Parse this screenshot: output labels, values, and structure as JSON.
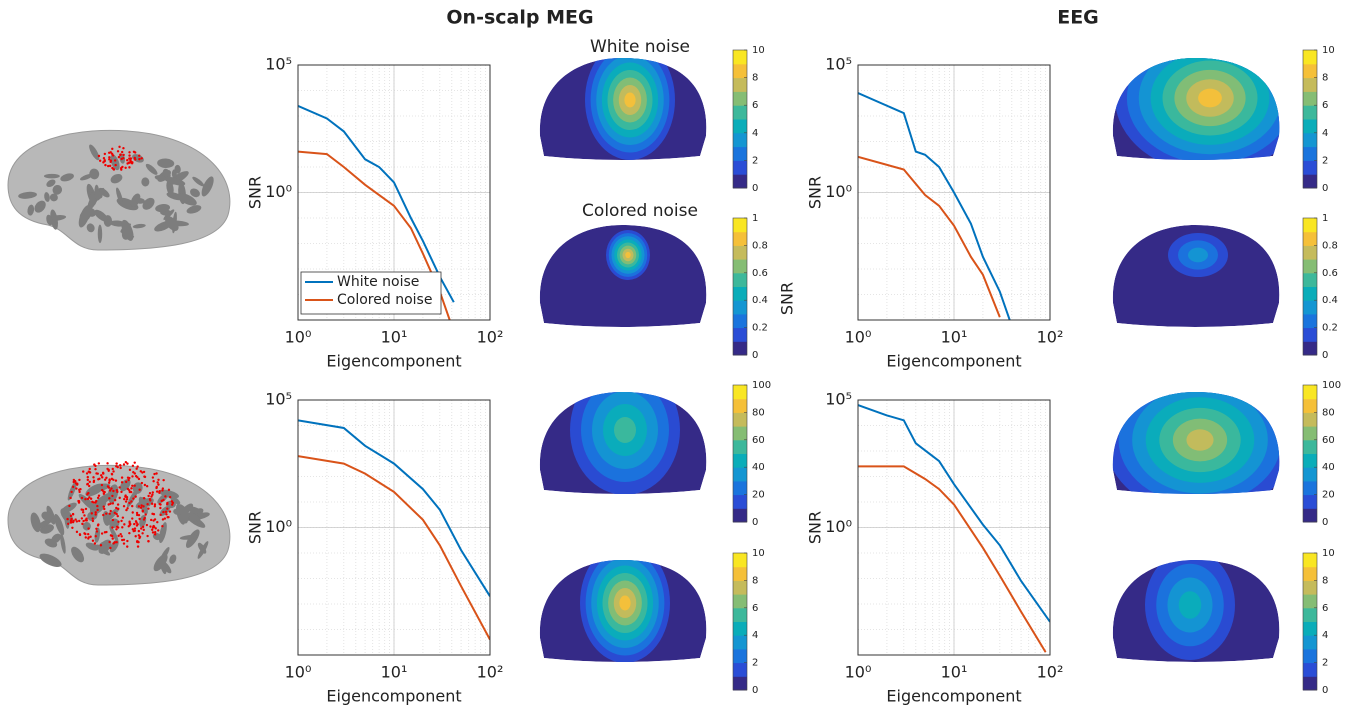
{
  "figure": {
    "column_titles": [
      "On-scalp MEG",
      "EEG"
    ],
    "topomap_titles": [
      "White noise",
      "Colored noise"
    ]
  },
  "chart_data": [
    {
      "type": "line",
      "xlabel": "Eigencomponent",
      "ylabel": "SNR",
      "xscale": "log",
      "yscale": "log",
      "xlim": [
        1,
        100
      ],
      "ylim": [
        1e-05,
        100000
      ],
      "xticks": [
        {
          "value": 1,
          "label": "10⁰"
        },
        {
          "value": 10,
          "label": "10¹"
        },
        {
          "value": 100,
          "label": "10²"
        }
      ],
      "yticks": [
        {
          "value": 1,
          "label": "10⁰"
        },
        {
          "value": 100000,
          "label": "10⁵"
        }
      ],
      "grid": true,
      "minor_grid": true,
      "legend": "lower left",
      "series": [
        {
          "name": "White noise",
          "color": "#0072bd",
          "x": [
            1,
            2,
            3,
            5,
            7,
            10,
            15,
            20,
            30,
            42
          ],
          "values": [
            2500,
            800,
            250,
            20,
            10,
            2.5,
            0.1,
            0.0126,
            0.0005,
            5e-05
          ]
        },
        {
          "name": "Colored noise",
          "color": "#d95319",
          "x": [
            1,
            2,
            3,
            5,
            10,
            15,
            20,
            30,
            38
          ],
          "values": [
            40,
            32,
            10,
            2,
            0.3,
            0.04,
            0.004,
            0.00013,
            1e-05
          ]
        }
      ]
    },
    {
      "type": "line",
      "xlabel": "Eigencomponent",
      "ylabel": "SNR",
      "xscale": "log",
      "yscale": "log",
      "xlim": [
        1,
        100
      ],
      "ylim": [
        1e-05,
        100000
      ],
      "xticks": [
        {
          "value": 1,
          "label": "10⁰"
        },
        {
          "value": 10,
          "label": "10¹"
        },
        {
          "value": 100,
          "label": "10²"
        }
      ],
      "yticks": [
        {
          "value": 1,
          "label": "10⁰"
        },
        {
          "value": 100000,
          "label": "10⁵"
        }
      ],
      "grid": true,
      "minor_grid": true,
      "series": [
        {
          "color": "#0072bd",
          "x": [
            1,
            3,
            4,
            5,
            7,
            10,
            15,
            20,
            30,
            38
          ],
          "values": [
            8000,
            1300,
            40,
            30,
            10,
            1,
            0.06,
            0.003,
            0.00013,
            1e-05
          ]
        },
        {
          "color": "#d95319",
          "x": [
            1,
            3,
            5,
            7,
            10,
            15,
            20,
            30
          ],
          "values": [
            25,
            8,
            0.8,
            0.3,
            0.05,
            0.003,
            0.0006,
            1.3e-05
          ]
        }
      ]
    },
    {
      "type": "line",
      "xlabel": "Eigencomponent",
      "ylabel": "SNR",
      "xscale": "log",
      "yscale": "log",
      "xlim": [
        1,
        100
      ],
      "ylim": [
        1e-05,
        100000
      ],
      "xticks": [
        {
          "value": 1,
          "label": "10⁰"
        },
        {
          "value": 10,
          "label": "10¹"
        },
        {
          "value": 100,
          "label": "10²"
        }
      ],
      "yticks": [
        {
          "value": 1,
          "label": "10⁰"
        },
        {
          "value": 100000,
          "label": "10⁵"
        }
      ],
      "grid": true,
      "minor_grid": true,
      "series": [
        {
          "color": "#0072bd",
          "x": [
            1,
            3,
            5,
            10,
            20,
            30,
            50,
            100
          ],
          "values": [
            16000,
            8000,
            1600,
            320,
            32,
            5,
            0.13,
            0.002
          ]
        },
        {
          "color": "#d95319",
          "x": [
            1,
            3,
            5,
            10,
            20,
            30,
            50,
            100
          ],
          "values": [
            630,
            320,
            130,
            25,
            2,
            0.2,
            0.005,
            4e-05
          ]
        }
      ]
    },
    {
      "type": "line",
      "xlabel": "Eigencomponent",
      "ylabel": "SNR",
      "xscale": "log",
      "yscale": "log",
      "xlim": [
        1,
        100
      ],
      "ylim": [
        1e-05,
        100000
      ],
      "xticks": [
        {
          "value": 1,
          "label": "10⁰"
        },
        {
          "value": 10,
          "label": "10¹"
        },
        {
          "value": 100,
          "label": "10²"
        }
      ],
      "yticks": [
        {
          "value": 1,
          "label": "10⁰"
        },
        {
          "value": 100000,
          "label": "10⁵"
        }
      ],
      "grid": true,
      "minor_grid": true,
      "series": [
        {
          "color": "#0072bd",
          "x": [
            1,
            2,
            3,
            4,
            7,
            10,
            20,
            30,
            50,
            100
          ],
          "values": [
            63000,
            25000,
            16000,
            2000,
            400,
            50,
            1.3,
            0.2,
            0.008,
            0.0002
          ]
        },
        {
          "color": "#d95319",
          "x": [
            1,
            3,
            5,
            7,
            10,
            20,
            30,
            50,
            90
          ],
          "values": [
            250,
            250,
            80,
            32,
            8,
            0.16,
            0.013,
            0.0005,
            1.3e-05
          ]
        }
      ]
    },
    {
      "type": "colorbar",
      "ylim": [
        0,
        10
      ],
      "yticks": [
        0,
        2,
        4,
        6,
        8,
        10
      ],
      "colors": [
        "#352a87",
        "#2a4dd6",
        "#1a74dd",
        "#1496d2",
        "#0aadb9",
        "#3db89b",
        "#85bd74",
        "#c5bb5b",
        "#f5c039",
        "#f9e623"
      ]
    },
    {
      "type": "colorbar",
      "ylim": [
        0,
        1
      ],
      "yticks": [
        0,
        0.2,
        0.4,
        0.6,
        0.8,
        1
      ],
      "label": "SNR",
      "colors": [
        "#352a87",
        "#2a4dd6",
        "#1a74dd",
        "#1496d2",
        "#0aadb9",
        "#3db89b",
        "#85bd74",
        "#c5bb5b",
        "#f5c039",
        "#f9e623"
      ]
    },
    {
      "type": "colorbar",
      "ylim": [
        0,
        100
      ],
      "yticks": [
        0,
        20,
        40,
        60,
        80,
        100
      ],
      "colors": [
        "#352a87",
        "#2a4dd6",
        "#1a74dd",
        "#1496d2",
        "#0aadb9",
        "#3db89b",
        "#85bd74",
        "#c5bb5b",
        "#f5c039",
        "#f9e623"
      ]
    },
    {
      "type": "colorbar",
      "ylim": [
        0,
        10
      ],
      "yticks": [
        0,
        2,
        4,
        6,
        8,
        10
      ],
      "colors": [
        "#352a87",
        "#2a4dd6",
        "#1a74dd",
        "#1496d2",
        "#0aadb9",
        "#3db89b",
        "#85bd74",
        "#c5bb5b",
        "#f5c039",
        "#f9e623"
      ]
    },
    {
      "type": "colorbar",
      "ylim": [
        0,
        10
      ],
      "yticks": [
        0,
        2,
        4,
        6,
        8,
        10
      ],
      "colors": [
        "#352a87",
        "#2a4dd6",
        "#1a74dd",
        "#1496d2",
        "#0aadb9",
        "#3db89b",
        "#85bd74",
        "#c5bb5b",
        "#f5c039",
        "#f9e623"
      ]
    },
    {
      "type": "colorbar",
      "ylim": [
        0,
        1
      ],
      "yticks": [
        0,
        0.2,
        0.4,
        0.6,
        0.8,
        1
      ],
      "colors": [
        "#352a87",
        "#2a4dd6",
        "#1a74dd",
        "#1496d2",
        "#0aadb9",
        "#3db89b",
        "#85bd74",
        "#c5bb5b",
        "#f5c039",
        "#f9e623"
      ]
    },
    {
      "type": "colorbar",
      "ylim": [
        0,
        100
      ],
      "yticks": [
        0,
        20,
        40,
        60,
        80,
        100
      ],
      "colors": [
        "#352a87",
        "#2a4dd6",
        "#1a74dd",
        "#1496d2",
        "#0aadb9",
        "#3db89b",
        "#85bd74",
        "#c5bb5b",
        "#f5c039",
        "#f9e623"
      ]
    },
    {
      "type": "colorbar",
      "ylim": [
        0,
        10
      ],
      "yticks": [
        0,
        2,
        4,
        6,
        8,
        10
      ],
      "colors": [
        "#352a87",
        "#2a4dd6",
        "#1a74dd",
        "#1496d2",
        "#0aadb9",
        "#3db89b",
        "#85bd74",
        "#c5bb5b",
        "#f5c039",
        "#f9e623"
      ]
    }
  ]
}
